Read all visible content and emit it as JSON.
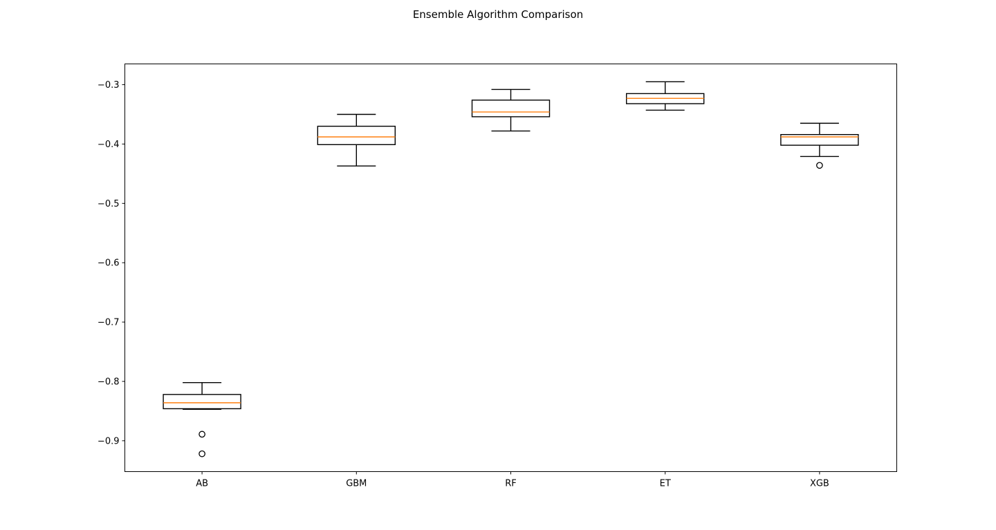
{
  "chart_data": {
    "type": "box",
    "title": "Ensemble Algorithm Comparison",
    "xlabel": "",
    "ylabel": "",
    "categories": [
      "AB",
      "GBM",
      "RF",
      "ET",
      "XGB"
    ],
    "ylim": [
      -0.952,
      -0.265
    ],
    "yticks": [
      -0.3,
      -0.4,
      -0.5,
      -0.6,
      -0.7,
      -0.8,
      -0.9
    ],
    "ytick_labels": [
      "−0.3",
      "−0.4",
      "−0.5",
      "−0.6",
      "−0.7",
      "−0.8",
      "−0.9"
    ],
    "grid": false,
    "legend": "none",
    "boxes": [
      {
        "label": "AB",
        "whisker_low": -0.847,
        "q1": -0.846,
        "median": -0.836,
        "q3": -0.822,
        "whisker_high": -0.802,
        "outliers": [
          -0.889,
          -0.922
        ]
      },
      {
        "label": "GBM",
        "whisker_low": -0.437,
        "q1": -0.401,
        "median": -0.388,
        "q3": -0.37,
        "whisker_high": -0.35,
        "outliers": []
      },
      {
        "label": "RF",
        "whisker_low": -0.378,
        "q1": -0.354,
        "median": -0.346,
        "q3": -0.326,
        "whisker_high": -0.308,
        "outliers": []
      },
      {
        "label": "ET",
        "whisker_low": -0.343,
        "q1": -0.332,
        "median": -0.323,
        "q3": -0.315,
        "whisker_high": -0.295,
        "outliers": []
      },
      {
        "label": "XGB",
        "whisker_low": -0.421,
        "q1": -0.402,
        "median": -0.388,
        "q3": -0.384,
        "whisker_high": -0.365,
        "outliers": [
          -0.436
        ]
      }
    ],
    "colors": {
      "box": "#000000",
      "median": "#ff7f0e",
      "axes": "#000000"
    }
  }
}
